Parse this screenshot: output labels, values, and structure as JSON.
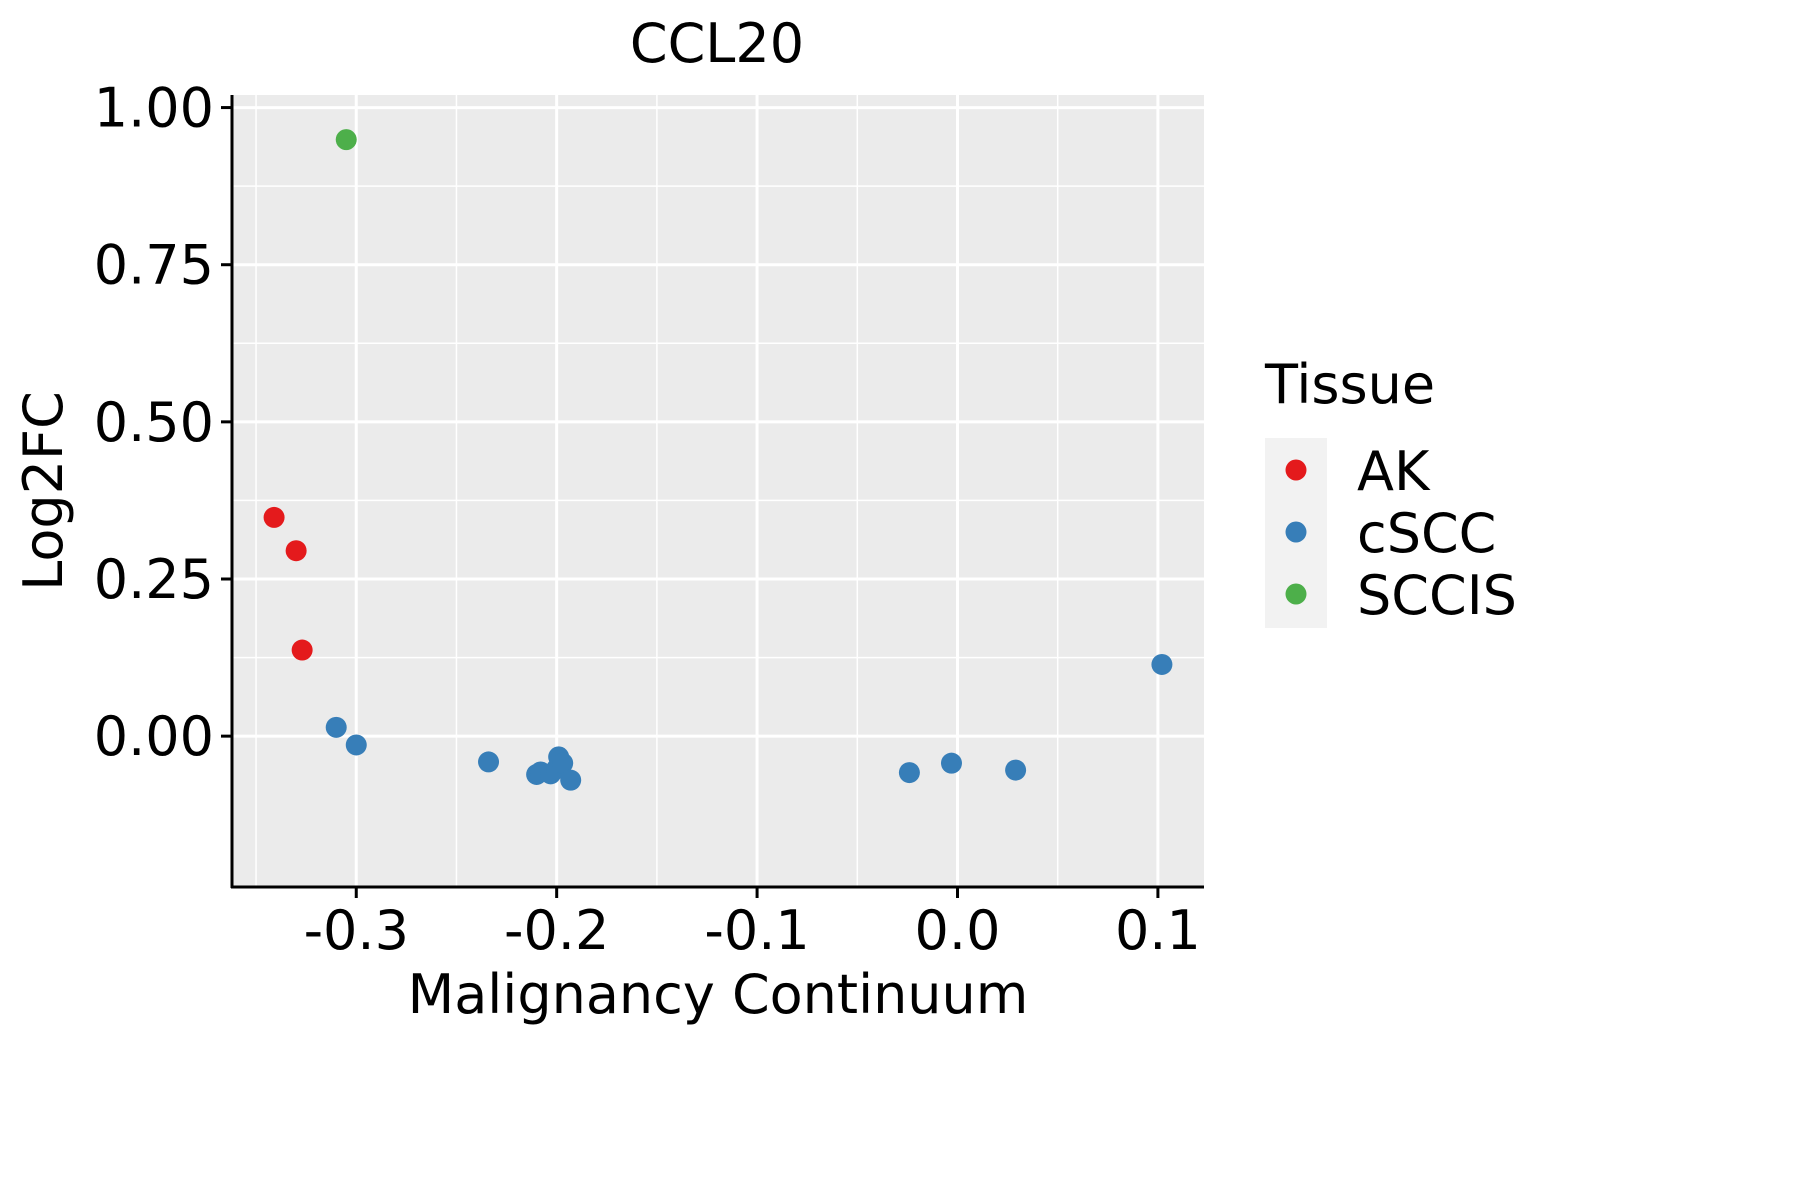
{
  "chart_data": {
    "type": "scatter",
    "title": "CCL20",
    "xlabel": "Malignancy Continuum",
    "ylabel": "Log2FC",
    "xlim": [
      -0.362,
      0.123
    ],
    "ylim": [
      -0.24,
      1.02
    ],
    "x_ticks": [
      -0.3,
      -0.2,
      -0.1,
      0.0,
      0.1
    ],
    "x_tick_labels": [
      "-0.3",
      "-0.2",
      "-0.1",
      "0.0",
      "0.1"
    ],
    "y_ticks": [
      0,
      0.25,
      0.5,
      0.75,
      1.0
    ],
    "y_tick_labels": [
      "0.00",
      "0.25",
      "0.50",
      "0.75",
      "1.00"
    ],
    "grid": true,
    "background": "#EBEBEB",
    "legend": {
      "title": "Tissue",
      "position": "right"
    },
    "series": [
      {
        "name": "AK",
        "color": "#E41A1C",
        "points": [
          {
            "x": -0.341,
            "y": 0.348
          },
          {
            "x": -0.33,
            "y": 0.295
          },
          {
            "x": -0.327,
            "y": 0.137
          }
        ]
      },
      {
        "name": "cSCC",
        "color": "#377EB8",
        "points": [
          {
            "x": -0.31,
            "y": 0.014
          },
          {
            "x": -0.3,
            "y": -0.014
          },
          {
            "x": -0.234,
            "y": -0.041
          },
          {
            "x": -0.21,
            "y": -0.061
          },
          {
            "x": -0.208,
            "y": -0.057
          },
          {
            "x": -0.203,
            "y": -0.06
          },
          {
            "x": -0.2,
            "y": -0.052
          },
          {
            "x": -0.199,
            "y": -0.033
          },
          {
            "x": -0.197,
            "y": -0.043
          },
          {
            "x": -0.193,
            "y": -0.07
          },
          {
            "x": -0.024,
            "y": -0.058
          },
          {
            "x": -0.003,
            "y": -0.043
          },
          {
            "x": 0.029,
            "y": -0.054
          },
          {
            "x": 0.102,
            "y": 0.114
          }
        ]
      },
      {
        "name": "SCCIS",
        "color": "#4DAF4A",
        "points": [
          {
            "x": -0.305,
            "y": 0.949
          }
        ]
      }
    ]
  }
}
